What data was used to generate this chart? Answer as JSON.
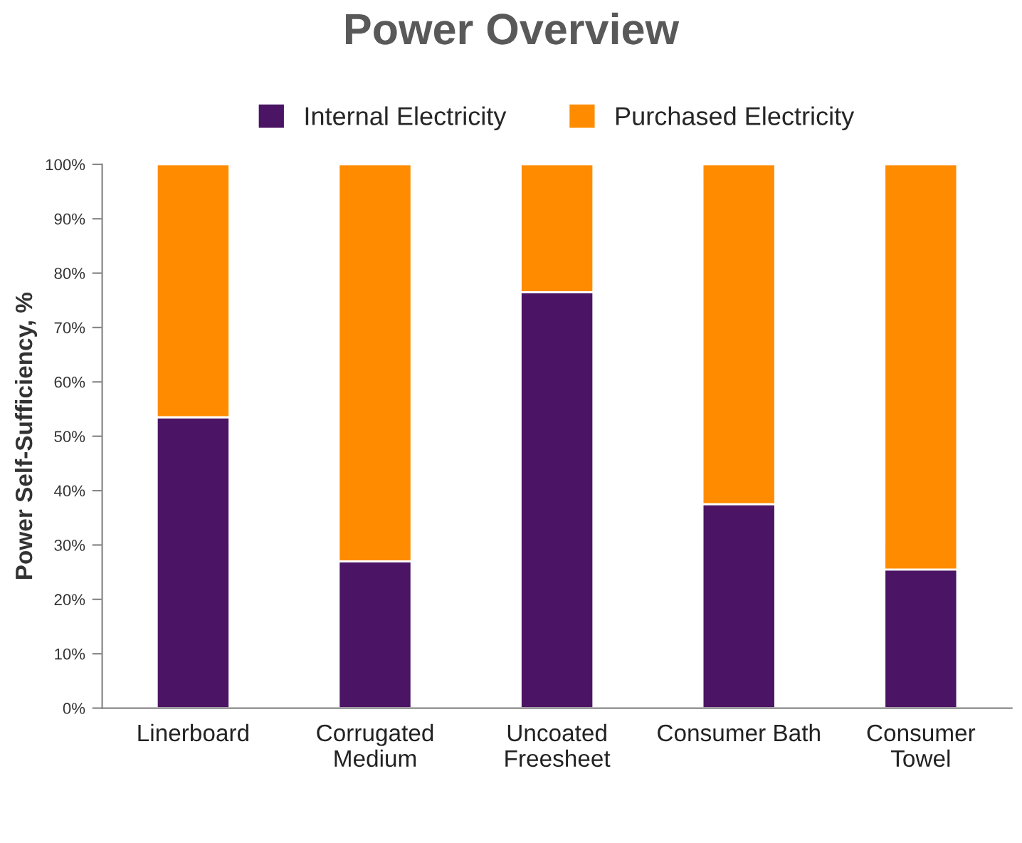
{
  "chart_data": {
    "type": "bar",
    "title": "Power Overview",
    "ylabel": "Power Self-Sufficiency, %",
    "categories": [
      "Linerboard",
      "Corrugated\nMedium",
      "Uncoated\nFreesheet",
      "Consumer Bath",
      "Consumer\nTowel"
    ],
    "stacked": true,
    "series": [
      {
        "name": "Internal Electricity",
        "color": "#4b1464",
        "values": [
          53.5,
          27,
          76.5,
          37.5,
          25.5
        ]
      },
      {
        "name": "Purchased Electricity",
        "color": "#ff8c00",
        "values": [
          46.5,
          73,
          23.5,
          62.5,
          74.5
        ]
      }
    ],
    "ylim": [
      0,
      100
    ],
    "yticks": [
      {
        "value": 0,
        "label": "0%"
      },
      {
        "value": 10,
        "label": "10%"
      },
      {
        "value": 20,
        "label": "20%"
      },
      {
        "value": 30,
        "label": "30%"
      },
      {
        "value": 40,
        "label": "40%"
      },
      {
        "value": 50,
        "label": "50%"
      },
      {
        "value": 60,
        "label": "60%"
      },
      {
        "value": 70,
        "label": "70%"
      },
      {
        "value": 80,
        "label": "80%"
      },
      {
        "value": 90,
        "label": "90%"
      },
      {
        "value": 100,
        "label": "100%"
      }
    ],
    "legend": "top",
    "grid": false
  }
}
